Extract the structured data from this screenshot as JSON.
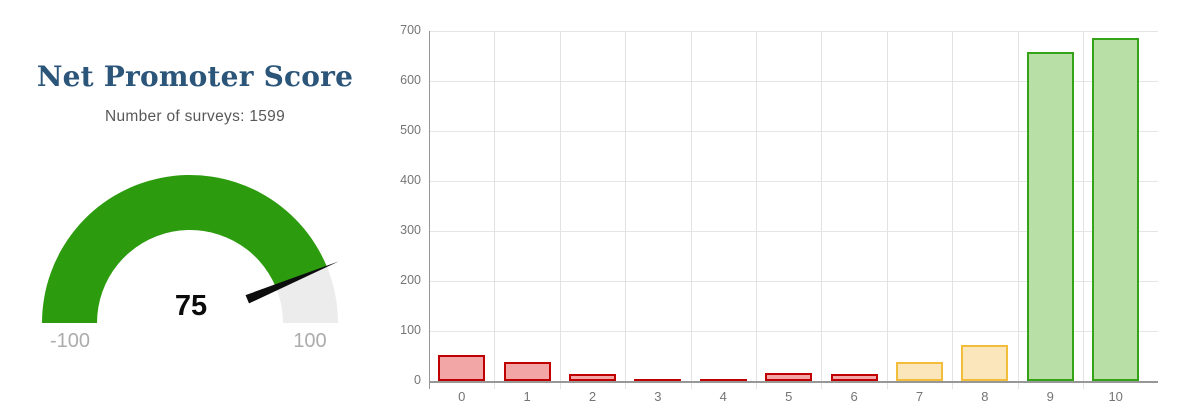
{
  "gauge": {
    "title": "Net Promoter Score",
    "subtitle": "Number of surveys: 1599",
    "value": 75,
    "min": -100,
    "max": 100,
    "min_label": "-100",
    "max_label": "100",
    "title_color": "#2b5579",
    "arc_color": "#2c9b0e",
    "track_color": "#ececec",
    "needle_color": "#0d0d0d"
  },
  "chart_data": {
    "type": "bar",
    "title": "",
    "xlabel": "",
    "ylabel": "",
    "categories": [
      "0",
      "1",
      "2",
      "3",
      "4",
      "5",
      "6",
      "7",
      "8",
      "9",
      "10"
    ],
    "values": [
      52,
      38,
      15,
      4,
      2,
      17,
      15,
      38,
      73,
      658,
      687
    ],
    "segments": [
      "detractor",
      "detractor",
      "detractor",
      "detractor",
      "detractor",
      "detractor",
      "detractor",
      "passive",
      "passive",
      "promoter",
      "promoter"
    ],
    "segment_colors": {
      "detractor": {
        "fill": "#f2a6a6",
        "stroke": "#c00000"
      },
      "passive": {
        "fill": "#fae6ba",
        "stroke": "#f2bd3a"
      },
      "promoter": {
        "fill": "#b8dfa6",
        "stroke": "#35a318"
      }
    },
    "ylim": [
      0,
      700
    ],
    "yticks": [
      0,
      100,
      200,
      300,
      400,
      500,
      600,
      700
    ],
    "grid": true,
    "legend": false
  }
}
